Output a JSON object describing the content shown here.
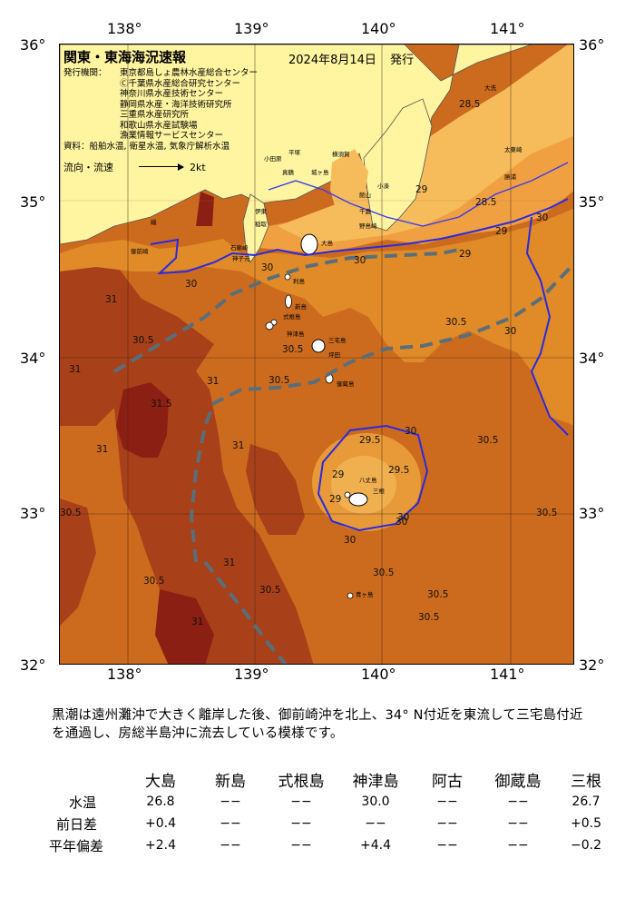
{
  "map": {
    "title": "関東・東海海況速報",
    "issue_date": "2024年8月14日",
    "issue_label": "発行",
    "sources": [
      {
        "key": "発行機関：",
        "lines": [
          "東京都島しょ農林水産総合センター",
          "Ⓒ千葉県水産総合研究センター",
          "神奈川県水産技術センター",
          "静岡県水産・海洋技術研究所",
          "三重県水産研究所",
          "和歌山県水産試験場",
          "漁業情報サービスセンター"
        ]
      },
      {
        "key": "資料：",
        "lines": [
          "船舶水温, 衛星水温, 気象庁解析水温"
        ]
      }
    ],
    "flow_legend_label": "流向・流速",
    "flow_legend_value": "2kt",
    "lon_ticks": [
      "138°",
      "139°",
      "140°",
      "141°"
    ],
    "lat_ticks": [
      "36°",
      "35°",
      "34°",
      "33°",
      "32°"
    ],
    "lat_ticks_right": [
      "36°",
      "35°",
      "34°",
      "33°",
      "32°"
    ],
    "places": {
      "oarai": "大洗",
      "taito": "太東崎",
      "katsuura": "勝浦",
      "nojima": "野島崎",
      "choshi": "小湊",
      "odawara": "小田原",
      "hiratsuka": "平塚",
      "yokosuka": "横須賀",
      "manazuru": "真鶴",
      "jogashima": "城ヶ島",
      "tateyama": "館山",
      "chikura": "千倉",
      "ito": "伊東",
      "inatori": "稲取",
      "iso_city": "磯",
      "omaezaki": "御前崎",
      "shimoda": "石廊崎",
      "iro": "神子元",
      "oshima": "大島",
      "toshima": "利島",
      "niijima": "新島",
      "shikinejima": "式根島",
      "kozushima": "神津島",
      "miyake": "三宅島",
      "mikurajima": "御蔵島",
      "hachijo": "八丈島",
      "hachijo2": "三根",
      "aogashima": "青ヶ島",
      "tsubota": "坪田"
    },
    "isotherm_labels": [
      "28.5",
      "28.5",
      "29",
      "29",
      "29",
      "29",
      "29",
      "29.5",
      "29.5",
      "30",
      "30",
      "30",
      "30",
      "30",
      "30",
      "30",
      "30.5",
      "30.5",
      "30.5",
      "30.5",
      "30.5",
      "30.5",
      "30.5",
      "30.5",
      "30.5",
      "30.5",
      "30.5",
      "30.5",
      "31",
      "31",
      "31",
      "31",
      "31",
      "31",
      "31",
      "31.5",
      "30",
      "30"
    ],
    "kuroshio": "黒潮流軸（破線）",
    "colors": {
      "sst_29": "#f0a040",
      "sst_30": "#e08a28",
      "sst_30_5": "#cc6b1e",
      "sst_31": "#a8401a",
      "sst_31_5": "#8b1f14",
      "coast_warm": "#fbd27a",
      "land_yellow": "#fff8a8",
      "land_island": "#ffffff",
      "isotherm_30_line": "#2a2ae0",
      "kuroshio_axis": "#5a6e7a"
    }
  },
  "summary_text": "黒潮は遠州灘沖で大きく離岸した後、御前崎沖を北上、34° N付近を東流して三宅島付近を通過し、房総半島沖に流去している模様です。",
  "stats": {
    "columns": [
      "大島",
      "新島",
      "式根島",
      "神津島",
      "阿古",
      "御蔵島",
      "三根"
    ],
    "rows": [
      {
        "label": "水温",
        "values": [
          "26.8",
          "−−",
          "−−",
          "30.0",
          "−−",
          "−−",
          "26.7"
        ]
      },
      {
        "label": "前日差",
        "values": [
          "+0.4",
          "−−",
          "−−",
          "−−",
          "−−",
          "−−",
          "+0.5"
        ]
      },
      {
        "label": "平年偏差",
        "values": [
          "+2.4",
          "−−",
          "−−",
          "+4.4",
          "−−",
          "−−",
          "−0.2"
        ]
      }
    ]
  }
}
